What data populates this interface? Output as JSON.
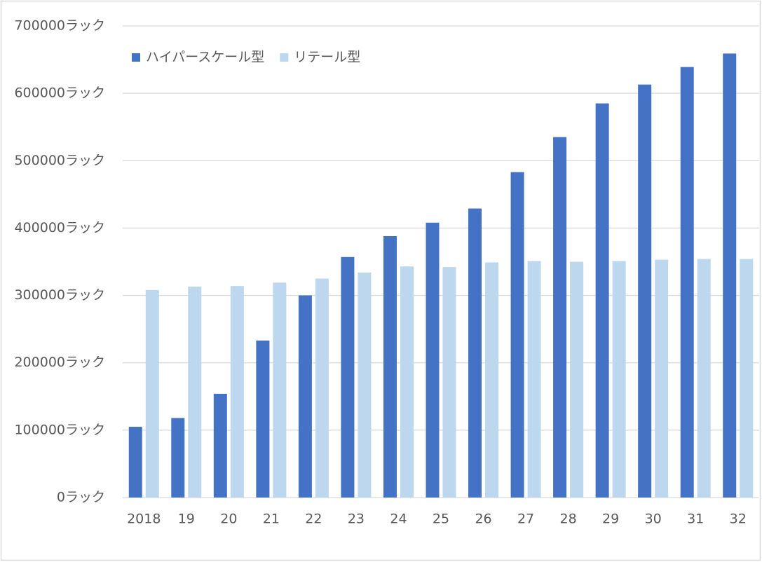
{
  "chart_data": {
    "type": "bar",
    "categories": [
      "2018",
      "19",
      "20",
      "21",
      "22",
      "23",
      "24",
      "25",
      "26",
      "27",
      "28",
      "29",
      "30",
      "31",
      "32"
    ],
    "series": [
      {
        "name": "ハイパースケール型",
        "color": "#4472c4",
        "values": [
          105000,
          118000,
          154000,
          233000,
          300000,
          357000,
          388000,
          408000,
          429000,
          483000,
          535000,
          585000,
          613000,
          639000,
          659000
        ]
      },
      {
        "name": "リテール型",
        "color": "#bdd7ee",
        "values": [
          308000,
          313000,
          314000,
          319000,
          325000,
          334000,
          343000,
          342000,
          349000,
          351000,
          350000,
          351000,
          353000,
          354000,
          354000
        ]
      }
    ],
    "ylim": [
      0,
      700000
    ],
    "yticks": [
      {
        "value": 0,
        "label": "0ラック"
      },
      {
        "value": 100000,
        "label": "100000ラック"
      },
      {
        "value": 200000,
        "label": "200000ラック"
      },
      {
        "value": 300000,
        "label": "300000ラック"
      },
      {
        "value": 400000,
        "label": "400000ラック"
      },
      {
        "value": 500000,
        "label": "500000ラック"
      },
      {
        "value": 600000,
        "label": "600000ラック"
      },
      {
        "value": 700000,
        "label": "700000ラック"
      }
    ],
    "grid": true,
    "legend": "top-left"
  }
}
